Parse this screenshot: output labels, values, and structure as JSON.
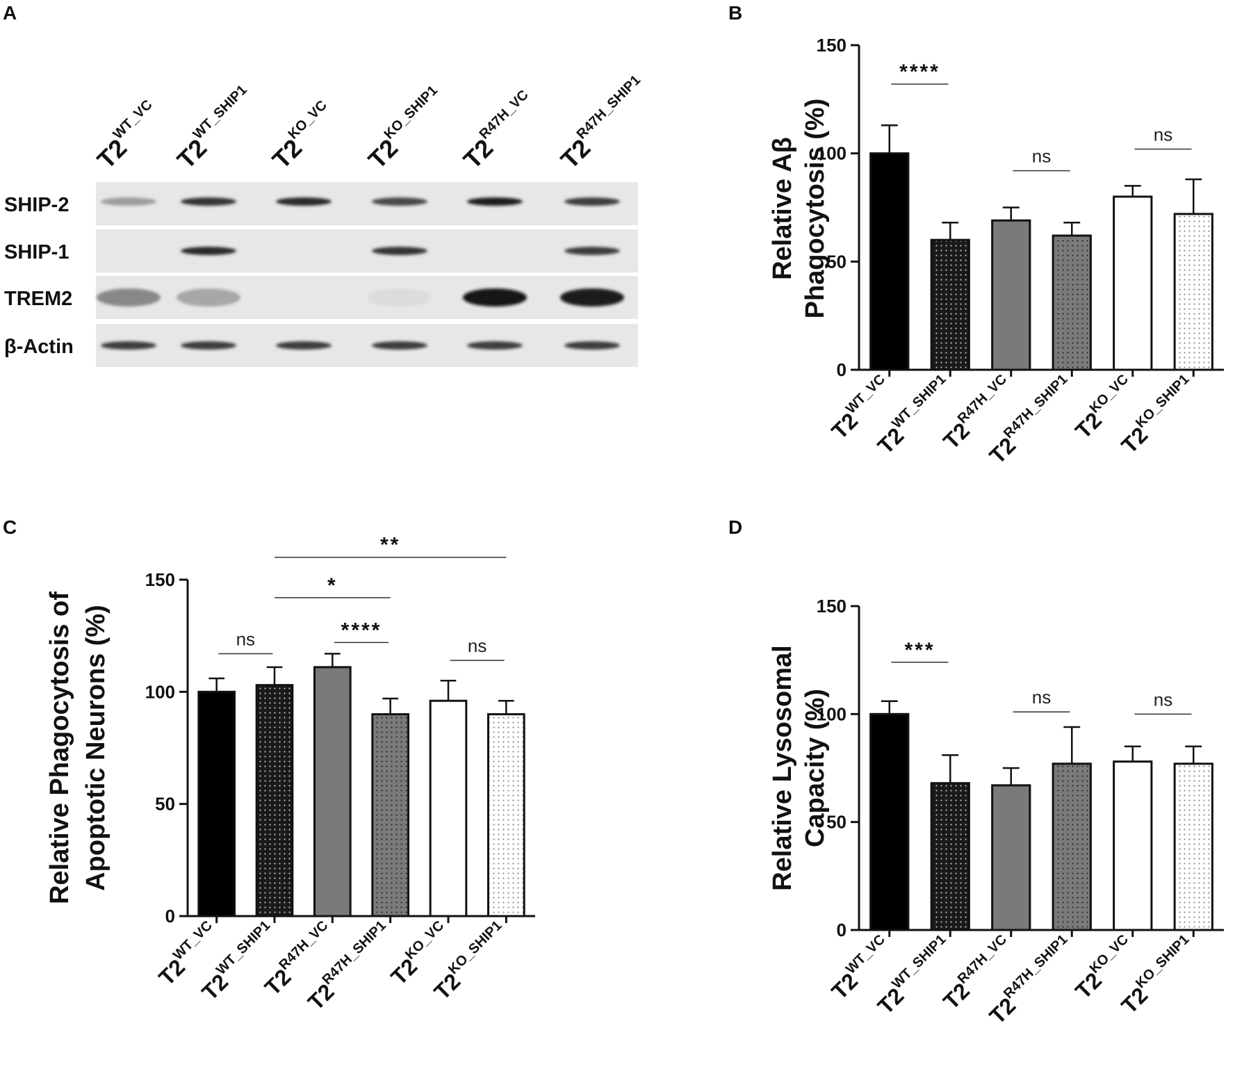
{
  "panel_letters": [
    "A",
    "B",
    "C",
    "D"
  ],
  "western_blot": {
    "lanes": [
      {
        "main": "T2",
        "sup": "WT_VC"
      },
      {
        "main": "T2",
        "sup": "WT_SHIP1"
      },
      {
        "main": "T2",
        "sup": "KO_VC"
      },
      {
        "main": "T2",
        "sup": "KO_SHIP1"
      },
      {
        "main": "T2",
        "sup": "R47H_VC"
      },
      {
        "main": "T2",
        "sup": "R47H_SHIP1"
      }
    ],
    "rows": [
      {
        "label": "SHIP-2",
        "intensity": [
          0.35,
          0.85,
          0.9,
          0.75,
          0.95,
          0.8
        ]
      },
      {
        "label": "SHIP-1",
        "intensity": [
          0.0,
          0.9,
          0.0,
          0.85,
          0.0,
          0.8
        ]
      },
      {
        "label": "TREM2",
        "intensity": [
          0.45,
          0.3,
          0.0,
          0.05,
          1.0,
          0.95
        ]
      },
      {
        "label": "β-Actin",
        "intensity": [
          0.8,
          0.8,
          0.8,
          0.8,
          0.8,
          0.8
        ]
      }
    ]
  },
  "chart_data": [
    {
      "panel": "B",
      "type": "bar",
      "ylabel": [
        "Relative Aβ",
        "Phagocytosis (%)"
      ],
      "ylim": [
        0,
        150
      ],
      "yticks": [
        0,
        50,
        100,
        150
      ],
      "categories": [
        {
          "main": "T2",
          "sup": "WT_VC"
        },
        {
          "main": "T2",
          "sup": "WT_SHIP1"
        },
        {
          "main": "T2",
          "sup": "R47H_VC"
        },
        {
          "main": "T2",
          "sup": "R47H_SHIP1"
        },
        {
          "main": "T2",
          "sup": "KO_VC"
        },
        {
          "main": "T2",
          "sup": "KO_SHIP1"
        }
      ],
      "values": [
        100,
        60,
        69,
        62,
        80,
        72
      ],
      "errors": [
        13,
        8,
        6,
        6,
        5,
        16
      ],
      "fills": [
        "solid-black",
        "black-dots",
        "gray",
        "gray-dots",
        "white",
        "white-dots"
      ],
      "comparisons": [
        {
          "from": 0,
          "to": 1,
          "label": "****",
          "y": 132
        },
        {
          "from": 2,
          "to": 3,
          "label": "ns",
          "y": 92
        },
        {
          "from": 4,
          "to": 5,
          "label": "ns",
          "y": 102
        }
      ]
    },
    {
      "panel": "C",
      "type": "bar",
      "ylabel": [
        "Relative Phagocytosis of",
        "Apoptotic Neurons (%)"
      ],
      "ylim": [
        0,
        150
      ],
      "yticks": [
        0,
        50,
        100,
        150
      ],
      "categories": [
        {
          "main": "T2",
          "sup": "WT_VC"
        },
        {
          "main": "T2",
          "sup": "WT_SHIP1"
        },
        {
          "main": "T2",
          "sup": "R47H_VC"
        },
        {
          "main": "T2",
          "sup": "R47H_SHIP1"
        },
        {
          "main": "T2",
          "sup": "KO_VC"
        },
        {
          "main": "T2",
          "sup": "KO_SHIP1"
        }
      ],
      "values": [
        100,
        103,
        111,
        90,
        96,
        90
      ],
      "errors": [
        6,
        8,
        6,
        7,
        9,
        6
      ],
      "fills": [
        "solid-black",
        "black-dots",
        "gray",
        "gray-dots",
        "white",
        "white-dots"
      ],
      "comparisons": [
        {
          "from": 1,
          "to": 5,
          "label": "**",
          "y": 160
        },
        {
          "from": 1,
          "to": 3,
          "label": "*",
          "y": 142
        },
        {
          "from": 2,
          "to": 3,
          "label": "****",
          "y": 122
        },
        {
          "from": 0,
          "to": 1,
          "label": "ns",
          "y": 117
        },
        {
          "from": 4,
          "to": 5,
          "label": "ns",
          "y": 114
        }
      ]
    },
    {
      "panel": "D",
      "type": "bar",
      "ylabel": [
        "Relative Lysosomal",
        "Capacity (%)"
      ],
      "ylim": [
        0,
        150
      ],
      "yticks": [
        0,
        50,
        100,
        150
      ],
      "categories": [
        {
          "main": "T2",
          "sup": "WT_VC"
        },
        {
          "main": "T2",
          "sup": "WT_SHIP1"
        },
        {
          "main": "T2",
          "sup": "R47H_VC"
        },
        {
          "main": "T2",
          "sup": "R47H_SHIP1"
        },
        {
          "main": "T2",
          "sup": "KO_VC"
        },
        {
          "main": "T2",
          "sup": "KO_SHIP1"
        }
      ],
      "values": [
        100,
        68,
        67,
        77,
        78,
        77
      ],
      "errors": [
        6,
        13,
        8,
        17,
        7,
        8
      ],
      "fills": [
        "solid-black",
        "black-dots",
        "gray",
        "gray-dots",
        "white",
        "white-dots"
      ],
      "comparisons": [
        {
          "from": 0,
          "to": 1,
          "label": "***",
          "y": 124
        },
        {
          "from": 2,
          "to": 3,
          "label": "ns",
          "y": 101
        },
        {
          "from": 4,
          "to": 5,
          "label": "ns",
          "y": 100
        }
      ]
    }
  ]
}
